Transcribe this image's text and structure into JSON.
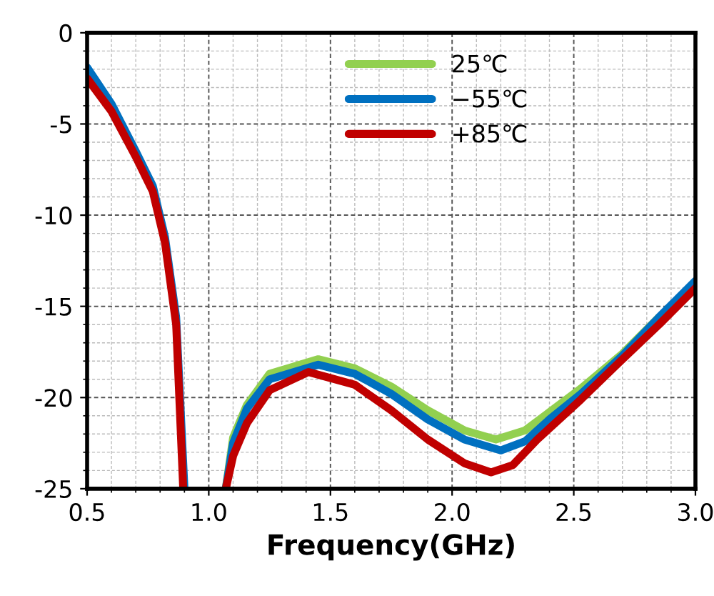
{
  "chart_data": {
    "type": "line",
    "xlabel": "Frequency(GHz)",
    "xlim": [
      0.5,
      3.0
    ],
    "xticks": [
      {
        "value": 0.5,
        "label": "0.5"
      },
      {
        "value": 1.0,
        "label": "1.0"
      },
      {
        "value": 1.5,
        "label": "1.5"
      },
      {
        "value": 2.0,
        "label": "2.0"
      },
      {
        "value": 2.5,
        "label": "2.5"
      },
      {
        "value": 3.0,
        "label": "3.0"
      }
    ],
    "ylim": [
      -25,
      0
    ],
    "yticks": [
      -25,
      -20,
      -15,
      -10,
      -5,
      0
    ],
    "grid": true,
    "legend": "top right",
    "marker": "none",
    "line_style": "solid",
    "series": [
      {
        "name": "25℃",
        "color": "#92d050",
        "x": [
          1.07,
          1.1,
          1.157,
          1.25,
          1.45,
          1.6,
          1.75,
          1.9,
          2.05,
          2.18,
          2.3,
          2.4,
          2.53,
          2.7,
          2.85
        ],
        "values": [
          -25,
          -22.2,
          -20.4,
          -18.7,
          -17.9,
          -18.4,
          -19.4,
          -20.7,
          -21.8,
          -22.3,
          -21.8,
          -20.8,
          -19.5,
          -17.6,
          -15.6
        ]
      },
      {
        "name": "−55℃",
        "color": "#0070c0",
        "x": [
          0.5,
          0.6,
          0.7,
          0.77,
          0.82,
          0.866,
          0.9,
          1.0,
          1.07,
          1.1,
          1.157,
          1.25,
          1.45,
          1.6,
          1.75,
          1.9,
          2.05,
          2.2,
          2.3,
          2.4,
          2.53,
          2.7,
          2.85,
          3.0
        ],
        "values": [
          -1.9,
          -3.9,
          -6.5,
          -8.4,
          -11.2,
          -15.6,
          -25,
          null,
          -25,
          -22.5,
          -20.6,
          -19.0,
          -18.2,
          -18.7,
          -19.8,
          -21.2,
          -22.3,
          -22.9,
          -22.4,
          -21.2,
          -19.8,
          -17.7,
          -15.6,
          -13.6
        ]
      },
      {
        "name": "+85℃",
        "color": "#c00000",
        "x": [
          0.5,
          0.6,
          0.7,
          0.77,
          0.82,
          0.866,
          0.895,
          1.0,
          1.07,
          1.1,
          1.157,
          1.25,
          1.41,
          1.6,
          1.75,
          1.9,
          2.05,
          2.16,
          2.25,
          2.35,
          2.53,
          2.7,
          2.85,
          3.0
        ],
        "values": [
          -2.5,
          -4.3,
          -6.8,
          -8.7,
          -11.5,
          -16.0,
          -25,
          null,
          -25,
          -23.2,
          -21.4,
          -19.6,
          -18.6,
          -19.3,
          -20.7,
          -22.3,
          -23.6,
          -24.1,
          -23.7,
          -22.3,
          -20.1,
          -17.9,
          -16.0,
          -14.0
        ]
      }
    ]
  }
}
